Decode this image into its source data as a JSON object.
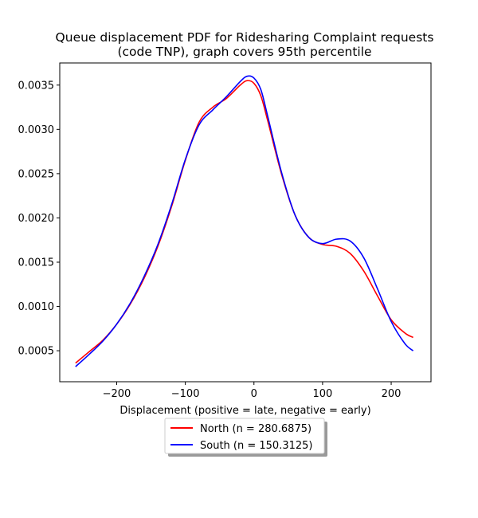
{
  "chart_data": {
    "type": "line",
    "title_lines": [
      "Queue displacement PDF for Ridesharing Complaint  requests",
      "(code TNP), graph covers 95th percentile"
    ],
    "xlabel": "Displacement (positive = late, negative = early)",
    "ylabel": "",
    "xlim": [
      -283,
      258
    ],
    "ylim": [
      0.00015,
      0.00375
    ],
    "x_ticks": [
      {
        "value": -200,
        "label": "−200"
      },
      {
        "value": -100,
        "label": "−100"
      },
      {
        "value": 0,
        "label": "0"
      },
      {
        "value": 100,
        "label": "100"
      },
      {
        "value": 200,
        "label": "200"
      }
    ],
    "y_ticks": [
      {
        "value": 0.0005,
        "label": "0.0005"
      },
      {
        "value": 0.001,
        "label": "0.0010"
      },
      {
        "value": 0.0015,
        "label": "0.0015"
      },
      {
        "value": 0.002,
        "label": "0.0020"
      },
      {
        "value": 0.0025,
        "label": "0.0025"
      },
      {
        "value": 0.003,
        "label": "0.0030"
      },
      {
        "value": 0.0035,
        "label": "0.0035"
      }
    ],
    "grid": false,
    "legend_position": "below",
    "series": [
      {
        "name": "North (n = 280.6875)",
        "color": "#ff0000",
        "points": [
          [
            -260,
            0.00036
          ],
          [
            -240,
            0.00049
          ],
          [
            -220,
            0.00062
          ],
          [
            -200,
            0.0008
          ],
          [
            -180,
            0.00103
          ],
          [
            -160,
            0.00132
          ],
          [
            -140,
            0.00168
          ],
          [
            -120,
            0.00213
          ],
          [
            -100,
            0.00265
          ],
          [
            -80,
            0.00308
          ],
          [
            -60,
            0.00325
          ],
          [
            -40,
            0.00335
          ],
          [
            -20,
            0.0035
          ],
          [
            -10,
            0.00355
          ],
          [
            0,
            0.00352
          ],
          [
            10,
            0.00338
          ],
          [
            20,
            0.0031
          ],
          [
            40,
            0.0025
          ],
          [
            60,
            0.00203
          ],
          [
            80,
            0.00178
          ],
          [
            100,
            0.0017
          ],
          [
            120,
            0.00168
          ],
          [
            140,
            0.0016
          ],
          [
            160,
            0.0014
          ],
          [
            180,
            0.00112
          ],
          [
            200,
            0.00085
          ],
          [
            220,
            0.0007
          ],
          [
            232,
            0.00065
          ]
        ]
      },
      {
        "name": "South (n = 150.3125)",
        "color": "#0000ff",
        "points": [
          [
            -260,
            0.00032
          ],
          [
            -240,
            0.00046
          ],
          [
            -220,
            0.00061
          ],
          [
            -200,
            0.0008
          ],
          [
            -180,
            0.00104
          ],
          [
            -160,
            0.00134
          ],
          [
            -140,
            0.0017
          ],
          [
            -120,
            0.00215
          ],
          [
            -100,
            0.00266
          ],
          [
            -80,
            0.00305
          ],
          [
            -60,
            0.00322
          ],
          [
            -40,
            0.00337
          ],
          [
            -20,
            0.00354
          ],
          [
            -10,
            0.0036
          ],
          [
            0,
            0.00358
          ],
          [
            10,
            0.00345
          ],
          [
            20,
            0.00315
          ],
          [
            40,
            0.00252
          ],
          [
            60,
            0.00203
          ],
          [
            80,
            0.00178
          ],
          [
            100,
            0.00171
          ],
          [
            120,
            0.00176
          ],
          [
            140,
            0.00174
          ],
          [
            160,
            0.00155
          ],
          [
            180,
            0.0012
          ],
          [
            200,
            0.00083
          ],
          [
            220,
            0.00058
          ],
          [
            232,
            0.0005
          ]
        ]
      }
    ]
  }
}
